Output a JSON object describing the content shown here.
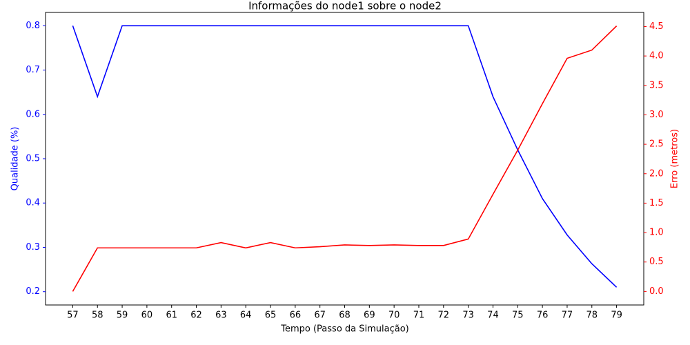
{
  "chart_data": {
    "type": "line",
    "title": "Informações do node1 sobre o node2",
    "xlabel": "Tempo (Passo da Simulação)",
    "ylabel": "Qualidade (%)",
    "y2label": "Erro (metros)",
    "x": [
      57,
      58,
      59,
      60,
      61,
      62,
      63,
      64,
      65,
      66,
      67,
      68,
      69,
      70,
      71,
      72,
      73,
      74,
      75,
      76,
      77,
      78,
      79
    ],
    "xlim": [
      55.9,
      80.1
    ],
    "xticks": [
      57,
      58,
      59,
      60,
      61,
      62,
      63,
      64,
      65,
      66,
      67,
      68,
      69,
      70,
      71,
      72,
      73,
      74,
      75,
      76,
      77,
      78,
      79
    ],
    "ylim": [
      0.17,
      0.83
    ],
    "yticks": [
      0.2,
      0.3,
      0.4,
      0.5,
      0.6,
      0.7,
      0.8
    ],
    "y2lim": [
      -0.23,
      4.74
    ],
    "y2ticks": [
      {
        "value": 0,
        "label": "0.0"
      },
      0.5,
      {
        "value": 1,
        "label": "1.0"
      },
      1.5,
      {
        "value": 2,
        "label": "2.0"
      },
      2.5,
      {
        "value": 3,
        "label": "3.0"
      },
      3.5,
      {
        "value": 4,
        "label": "4.0"
      },
      4.5
    ],
    "ycolor": "#0000ff",
    "y2color": "#ff0000",
    "grid": false,
    "series": [
      {
        "color": "#0000ff",
        "axis": "y",
        "values": [
          0.8,
          0.64,
          0.8,
          0.8,
          0.8,
          0.8,
          0.8,
          0.8,
          0.8,
          0.8,
          0.8,
          0.8,
          0.8,
          0.8,
          0.8,
          0.8,
          0.8,
          0.64,
          0.52,
          0.41,
          0.328,
          0.263,
          0.21
        ]
      },
      {
        "color": "#ff0000",
        "axis": "y2",
        "values": [
          0,
          0.74,
          0.74,
          0.74,
          0.74,
          0.74,
          0.83,
          0.74,
          0.83,
          0.74,
          0.76,
          0.79,
          0.78,
          0.79,
          0.78,
          0.78,
          0.89,
          1.65,
          2.4,
          3.19,
          3.96,
          4.1,
          4.51
        ]
      }
    ]
  }
}
